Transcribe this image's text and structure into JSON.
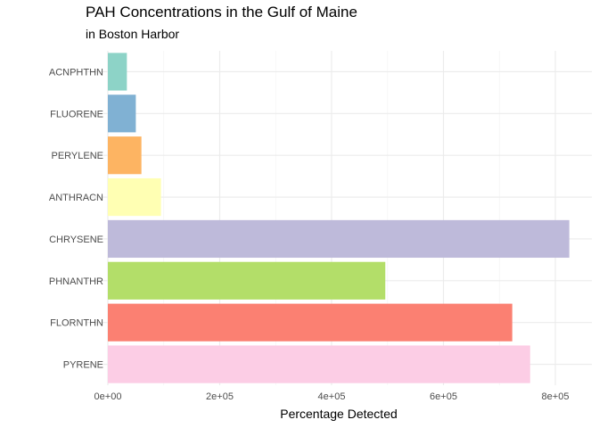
{
  "chart_data": {
    "type": "bar",
    "orientation": "horizontal",
    "title": "PAH Concentrations in the Gulf of Maine",
    "subtitle": "in Boston Harbor",
    "xlabel": "Percentage Detected",
    "ylabel": "",
    "xlim": [
      0,
      840000
    ],
    "x_ticks": [
      0,
      200000,
      400000,
      600000,
      800000
    ],
    "x_tick_labels": [
      "0e+00",
      "2e+05",
      "4e+05",
      "6e+05",
      "8e+05"
    ],
    "grid": true,
    "categories": [
      "ACNPHTHN",
      "FLUORENE",
      "PERYLENE",
      "ANTHRACN",
      "CHRYSENE",
      "PHNANTHR",
      "FLORNTHN",
      "PYRENE"
    ],
    "values": [
      34000,
      50000,
      60000,
      95000,
      825000,
      496000,
      723000,
      755000
    ],
    "colors": [
      "#8DD3C7",
      "#80B1D3",
      "#FDB462",
      "#FFFFB3",
      "#BEBADA",
      "#B3DE69",
      "#FB8072",
      "#FCCDE5"
    ]
  }
}
